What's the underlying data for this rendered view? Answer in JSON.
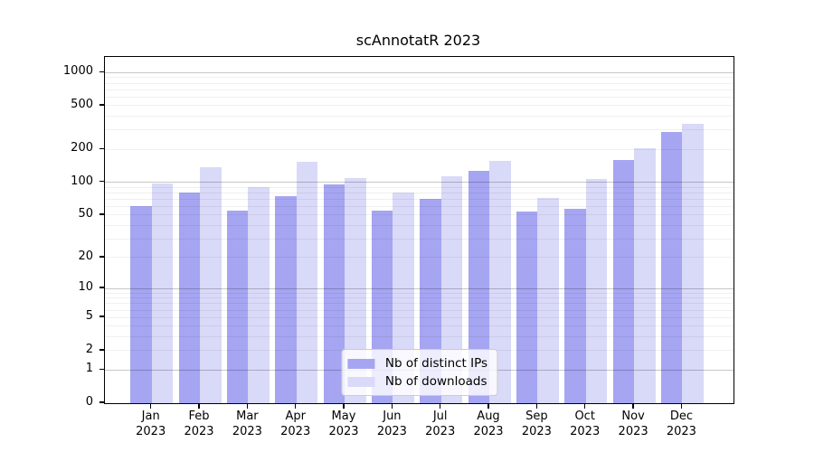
{
  "title": "scAnnotatR 2023",
  "chart_data": {
    "type": "bar",
    "title": "scAnnotatR 2023",
    "categories": [
      "Jan 2023",
      "Feb 2023",
      "Mar 2023",
      "Apr 2023",
      "May 2023",
      "Jun 2023",
      "Jul 2023",
      "Aug 2023",
      "Sep 2023",
      "Oct 2023",
      "Nov 2023",
      "Dec 2023"
    ],
    "series": [
      {
        "name": "Nb of distinct IPs",
        "color": "#a5a5f2",
        "values": [
          60,
          80,
          55,
          74,
          96,
          55,
          70,
          127,
          54,
          57,
          161,
          288
        ]
      },
      {
        "name": "Nb of downloads",
        "color": "#d9d9f8",
        "values": [
          97,
          137,
          90,
          155,
          110,
          81,
          113,
          157,
          72,
          107,
          204,
          342
        ]
      }
    ],
    "xlabel": "",
    "ylabel": "",
    "y_scale": "log10(value+1)",
    "y_ticks": [
      1000,
      500,
      200,
      100,
      50,
      20,
      10,
      5,
      2,
      1,
      0
    ],
    "ylim": [
      0,
      1385
    ],
    "grid": true,
    "legend_position": "lower center"
  }
}
